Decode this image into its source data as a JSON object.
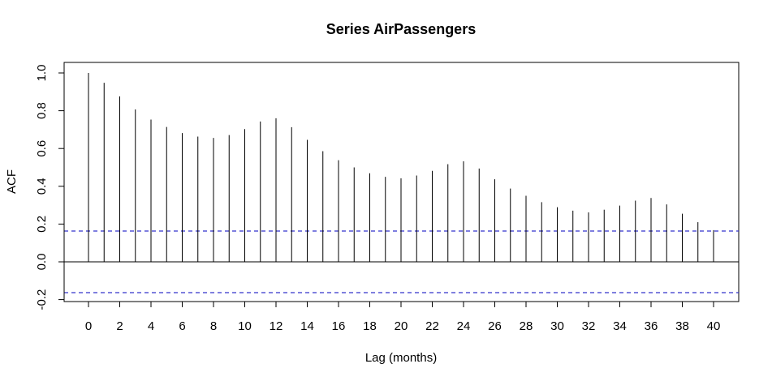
{
  "chart_data": {
    "type": "bar",
    "title": "Series  AirPassengers",
    "xlabel": "Lag (months)",
    "ylabel": "ACF",
    "xlim": [
      -1,
      41
    ],
    "ylim": [
      -0.22,
      1.05
    ],
    "xticks": [
      0,
      2,
      4,
      6,
      8,
      10,
      12,
      14,
      16,
      18,
      20,
      22,
      24,
      26,
      28,
      30,
      32,
      34,
      36,
      38,
      40
    ],
    "xtick_labels": [
      "0",
      "2",
      "4",
      "6",
      "8",
      "10",
      "12",
      "14",
      "16",
      "18",
      "20",
      "22",
      "24",
      "26",
      "28",
      "30",
      "32",
      "34",
      "36",
      "38",
      "40"
    ],
    "yticks": [
      -0.2,
      0.0,
      0.2,
      0.4,
      0.6,
      0.8,
      1.0
    ],
    "ytick_labels": [
      "-0.2",
      "0.0",
      "0.2",
      "0.4",
      "0.6",
      "0.8",
      "1.0"
    ],
    "lags": [
      0,
      1,
      2,
      3,
      4,
      5,
      6,
      7,
      8,
      9,
      10,
      11,
      12,
      13,
      14,
      15,
      16,
      17,
      18,
      19,
      20,
      21,
      22,
      23,
      24,
      25,
      26,
      27,
      28,
      29,
      30,
      31,
      32,
      33,
      34,
      35,
      36,
      37,
      38,
      39,
      40
    ],
    "values": [
      1.0,
      0.948,
      0.876,
      0.807,
      0.753,
      0.714,
      0.682,
      0.663,
      0.656,
      0.671,
      0.703,
      0.743,
      0.76,
      0.713,
      0.646,
      0.586,
      0.538,
      0.5,
      0.469,
      0.45,
      0.442,
      0.457,
      0.482,
      0.517,
      0.532,
      0.494,
      0.437,
      0.388,
      0.35,
      0.316,
      0.289,
      0.271,
      0.262,
      0.276,
      0.298,
      0.324,
      0.338,
      0.304,
      0.255,
      0.21,
      0.168
    ],
    "confidence_bound": 0.163,
    "grid": false,
    "colors": {
      "bars": "#000000",
      "confidence_lines": "#3333cc",
      "zero_line": "#000000"
    }
  }
}
